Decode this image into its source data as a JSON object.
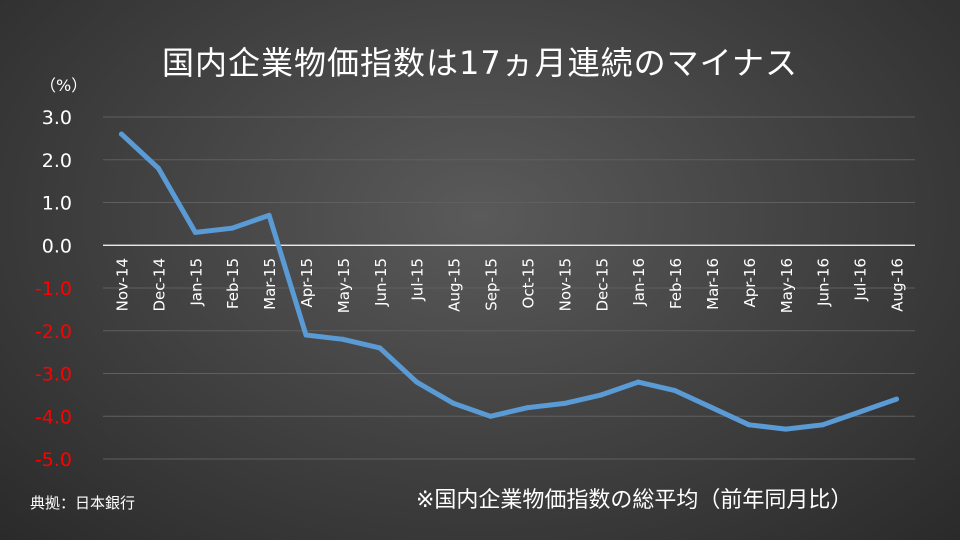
{
  "title": "国内企業物価指数は17ヵ月連続のマイナス",
  "unit_label": "（%）",
  "source": "典拠：日本銀行",
  "note": "※国内企業物価指数の総平均（前年同月比）",
  "colors": {
    "line": "#5b9bd5",
    "positive_tick": "#ffffff",
    "negative_tick": "#ff0000",
    "grid": "#5f5f5f",
    "zero_line": "#ffffff"
  },
  "chart_data": {
    "type": "line",
    "title": "国内企業物価指数は17ヵ月連続のマイナス",
    "xlabel": "",
    "ylabel": "（%）",
    "ylim": [
      -5.0,
      3.0
    ],
    "yticks": [
      "3.0",
      "2.0",
      "1.0",
      "0.0",
      "-1.0",
      "-2.0",
      "-3.0",
      "-4.0",
      "-5.0"
    ],
    "grid": true,
    "categories": [
      "Nov-14",
      "Dec-14",
      "Jan-15",
      "Feb-15",
      "Mar-15",
      "Apr-15",
      "May-15",
      "Jun-15",
      "Jul-15",
      "Aug-15",
      "Sep-15",
      "Oct-15",
      "Nov-15",
      "Dec-15",
      "Jan-16",
      "Feb-16",
      "Mar-16",
      "Apr-16",
      "May-16",
      "Jun-16",
      "Jul-16",
      "Aug-16"
    ],
    "series": [
      {
        "values": [
          2.6,
          1.8,
          0.3,
          0.4,
          0.7,
          -2.1,
          -2.2,
          -2.4,
          -3.2,
          -3.7,
          -4.0,
          -3.8,
          -3.7,
          -3.5,
          -3.2,
          -3.4,
          -3.8,
          -4.2,
          -4.3,
          -4.2,
          -3.9,
          -3.6
        ]
      }
    ]
  }
}
